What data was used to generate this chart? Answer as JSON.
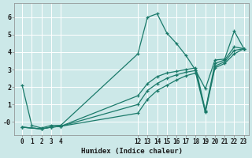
{
  "title": "",
  "xlabel": "Humidex (Indice chaleur)",
  "ylabel": "",
  "bg_color": "#cce8e8",
  "line_color": "#1a7a6a",
  "grid_color": "#ffffff",
  "series": [
    {
      "x": [
        0,
        1,
        2,
        3,
        4,
        12,
        13,
        14,
        15,
        16,
        17,
        18,
        19,
        20,
        21,
        22,
        23
      ],
      "y": [
        2.1,
        -0.2,
        -0.35,
        -0.2,
        -0.2,
        3.9,
        6.0,
        6.2,
        5.1,
        4.5,
        3.8,
        2.95,
        1.9,
        3.55,
        3.6,
        5.2,
        4.2
      ]
    },
    {
      "x": [
        0,
        2,
        3,
        4,
        12,
        13,
        14,
        15,
        16,
        17,
        18,
        19,
        20,
        21,
        22,
        23
      ],
      "y": [
        -0.3,
        -0.4,
        -0.3,
        -0.25,
        1.5,
        2.2,
        2.6,
        2.8,
        2.9,
        3.0,
        3.1,
        0.65,
        3.35,
        3.55,
        4.3,
        4.2
      ]
    },
    {
      "x": [
        0,
        2,
        3,
        4,
        12,
        13,
        14,
        15,
        16,
        17,
        18,
        19,
        20,
        21,
        22,
        23
      ],
      "y": [
        -0.3,
        -0.4,
        -0.3,
        -0.25,
        1.0,
        1.8,
        2.2,
        2.5,
        2.7,
        2.85,
        2.95,
        0.6,
        3.2,
        3.45,
        4.1,
        4.2
      ]
    },
    {
      "x": [
        0,
        2,
        3,
        4,
        12,
        13,
        14,
        15,
        16,
        17,
        18,
        19,
        20,
        21,
        22,
        23
      ],
      "y": [
        -0.3,
        -0.4,
        -0.3,
        -0.25,
        0.5,
        1.3,
        1.8,
        2.1,
        2.4,
        2.65,
        2.8,
        0.55,
        3.1,
        3.35,
        3.9,
        4.2
      ]
    }
  ],
  "xlim": [
    -0.8,
    23.5
  ],
  "ylim": [
    -0.75,
    6.8
  ],
  "xticks": [
    0,
    1,
    2,
    3,
    4,
    12,
    13,
    14,
    15,
    16,
    17,
    18,
    19,
    20,
    21,
    22,
    23
  ],
  "yticks": [
    0,
    1,
    2,
    3,
    4,
    5,
    6
  ],
  "ytick_labels": [
    "-0",
    "1",
    "2",
    "3",
    "4",
    "5",
    "6"
  ],
  "marker": "+",
  "markersize": 3.5,
  "linewidth": 0.9,
  "tick_fontsize": 5.5,
  "xlabel_fontsize": 6.5
}
